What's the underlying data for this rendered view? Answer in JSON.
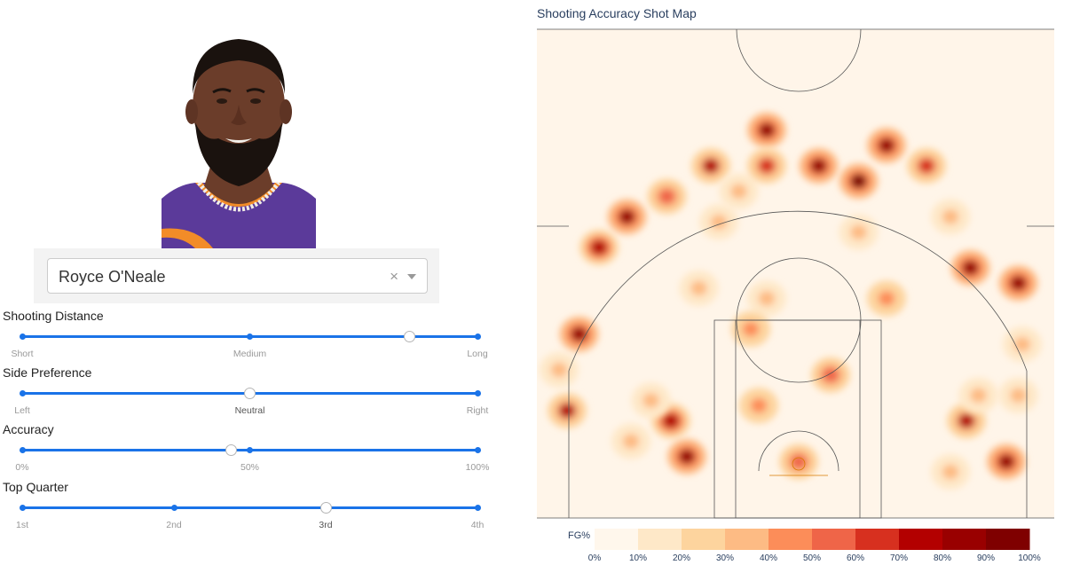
{
  "player": {
    "selected": "Royce O'Neale",
    "clear_symbol": "×",
    "headshot_colors": {
      "jersey": "#5b3a9a",
      "jersey_trim": "#f28c28",
      "skin": "#6b3d2a",
      "hair": "#1a120e"
    }
  },
  "sliders": [
    {
      "title": "Shooting Distance",
      "marks": [
        "Short",
        "Medium",
        "Long"
      ],
      "selected_fraction": 0.85
    },
    {
      "title": "Side Preference",
      "marks": [
        "Left",
        "Neutral",
        "Right"
      ],
      "selected_fraction": 0.5
    },
    {
      "title": "Accuracy",
      "marks": [
        "0%",
        "50%",
        "100%"
      ],
      "selected_fraction": 0.46
    },
    {
      "title": "Top Quarter",
      "marks": [
        "1st",
        "2nd",
        "3rd",
        "4th"
      ],
      "selected_fraction": 0.6667
    }
  ],
  "accent_color": "#1a73e8",
  "chart_data": {
    "type": "heatmap",
    "title": "Shooting Accuracy Shot Map",
    "colorbar": {
      "label": "FG%",
      "ticks": [
        "0%",
        "10%",
        "20%",
        "30%",
        "40%",
        "50%",
        "60%",
        "70%",
        "80%",
        "90%",
        "100%"
      ],
      "colors": [
        "#fff7ec",
        "#fee8c8",
        "#fdd49e",
        "#fdbb84",
        "#fc8d59",
        "#ef6548",
        "#d7301f",
        "#b30000",
        "#990000",
        "#7f0000"
      ]
    },
    "background": "#fff5e9",
    "hot_spots": [
      {
        "x": -32,
        "y": 18,
        "fg": 0.78
      },
      {
        "x": -42,
        "y": 14,
        "fg": 0.35
      },
      {
        "x": -37,
        "y": 22,
        "fg": 0.3
      },
      {
        "x": 42,
        "y": 18,
        "fg": 0.7
      },
      {
        "x": 38,
        "y": 8,
        "fg": 0.35
      },
      {
        "x": -28,
        "y": 11,
        "fg": 0.85
      },
      {
        "x": 45,
        "y": 23,
        "fg": 0.35
      },
      {
        "x": 0,
        "y": 10,
        "fg": 0.55
      },
      {
        "x": 8,
        "y": 27,
        "fg": 0.55
      },
      {
        "x": -10,
        "y": 21,
        "fg": 0.45
      },
      {
        "x": -8,
        "y": 42,
        "fg": 0.3
      },
      {
        "x": 15,
        "y": 55,
        "fg": 0.35
      },
      {
        "x": -20,
        "y": 57,
        "fg": 0.35
      },
      {
        "x": -25,
        "y": 44,
        "fg": 0.3
      },
      {
        "x": -12,
        "y": 36,
        "fg": 0.4
      },
      {
        "x": 22,
        "y": 42,
        "fg": 0.45
      },
      {
        "x": -55,
        "y": 35,
        "fg": 0.8
      },
      {
        "x": -50,
        "y": 52,
        "fg": 0.75
      },
      {
        "x": -43,
        "y": 58,
        "fg": 0.8
      },
      {
        "x": -33,
        "y": 62,
        "fg": 0.55
      },
      {
        "x": -22,
        "y": 68,
        "fg": 0.7
      },
      {
        "x": -15,
        "y": 63,
        "fg": 0.3
      },
      {
        "x": -8,
        "y": 75,
        "fg": 0.85
      },
      {
        "x": -8,
        "y": 68,
        "fg": 0.6
      },
      {
        "x": 5,
        "y": 68,
        "fg": 0.85
      },
      {
        "x": 15,
        "y": 65,
        "fg": 0.9
      },
      {
        "x": 22,
        "y": 72,
        "fg": 0.85
      },
      {
        "x": 32,
        "y": 68,
        "fg": 0.6
      },
      {
        "x": 38,
        "y": 58,
        "fg": 0.35
      },
      {
        "x": 43,
        "y": 48,
        "fg": 0.8
      },
      {
        "x": 55,
        "y": 45,
        "fg": 0.8
      },
      {
        "x": 56,
        "y": 33,
        "fg": 0.3
      },
      {
        "x": -58,
        "y": 20,
        "fg": 0.7
      },
      {
        "x": -60,
        "y": 28,
        "fg": 0.3
      },
      {
        "x": 52,
        "y": 10,
        "fg": 0.8
      },
      {
        "x": 55,
        "y": 23,
        "fg": 0.35
      }
    ]
  }
}
